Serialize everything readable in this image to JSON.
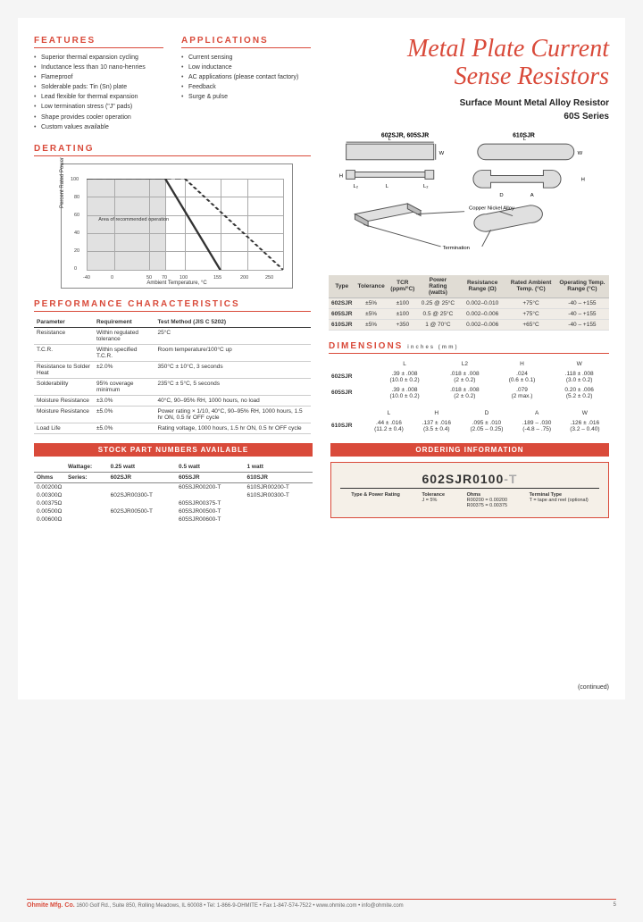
{
  "title_line1": "Metal Plate Current",
  "title_line2": "Sense Resistors",
  "subtitle1": "Surface Mount Metal Alloy Resistor",
  "subtitle2": "60S Series",
  "features": {
    "heading": "FEATURES",
    "items": [
      "Superior thermal expansion cycling",
      "Inductance less than 10 nano-henries",
      "Flameproof",
      "Solderable pads: Tin (Sn) plate",
      "Lead flexible for thermal expansion",
      "Low termination stress (\"J\" pads)",
      "Shape provides cooler operation",
      "Custom values available"
    ]
  },
  "applications": {
    "heading": "APPLICATIONS",
    "items": [
      "Current sensing",
      "Low inductance",
      "AC applications (please contact factory)",
      "Feedback",
      "Surge & pulse"
    ]
  },
  "derating": {
    "heading": "DERATING",
    "ylabel": "Percent Rated Power",
    "xlabel": "Ambient Temperature, °C",
    "yticks": [
      "0",
      "20",
      "40",
      "60",
      "80",
      "100"
    ],
    "xticks": [
      "-40",
      "0",
      "50",
      "70",
      "100",
      "155",
      "200",
      "250",
      "275"
    ],
    "area_label": "Area of recommended operation"
  },
  "perf": {
    "heading": "PERFORMANCE CHARACTERISTICS",
    "cols": [
      "Parameter",
      "Requirement",
      "Test Method (JIS C 5202)"
    ],
    "rows": [
      [
        "Resistance",
        "Within regulated tolerance",
        "25°C"
      ],
      [
        "T.C.R.",
        "Within specified T.C.R.",
        "Room temperature/100°C up"
      ],
      [
        "Resistance to Solder Heat",
        "±2.0%",
        "350°C ± 10°C, 3 seconds"
      ],
      [
        "Solderability",
        "95% coverage minimum",
        "235°C ± 5°C, 5 seconds"
      ],
      [
        "Moisture Resistance",
        "±3.0%",
        "40°C, 90–95% RH, 1000 hours, no load"
      ],
      [
        "Moisture Resistance",
        "±5.0%",
        "Power rating × 1/10, 40°C, 90–95% RH, 1000 hours, 1.5 hr ON, 0.5 hr OFF cycle"
      ],
      [
        "Load Life",
        "±5.0%",
        "Rating voltage, 1000 hours, 1.5 hr ON, 0.5 hr OFF cycle"
      ]
    ]
  },
  "diagram": {
    "label_602": "602SJR, 605SJR",
    "label_610": "610SJR",
    "copper": "Copper Nickel Alloy",
    "term": "Termination"
  },
  "specs": {
    "cols": [
      "Type",
      "Tolerance",
      "TCR (ppm/°C)",
      "Power Rating (watts)",
      "Resistance Range (Ω)",
      "Rated Ambient Temp. (°C)",
      "Operating Temp. Range (°C)"
    ],
    "rows": [
      [
        "602SJR",
        "±5%",
        "±100",
        "0.25 @ 25°C",
        "0.002–0.010",
        "+75°C",
        "-40 – +155"
      ],
      [
        "605SJR",
        "±5%",
        "±100",
        "0.5 @ 25°C",
        "0.002–0.006",
        "+75°C",
        "-40 – +155"
      ],
      [
        "610SJR",
        "±5%",
        "+350",
        "1 @ 70°C",
        "0.002–0.006",
        "+65°C",
        "-40 – +155"
      ]
    ]
  },
  "dimensions": {
    "heading": "DIMENSIONS",
    "unit": "inches (mm)",
    "block1": {
      "cols": [
        "",
        "L",
        "L2",
        "H",
        "W"
      ],
      "rows": [
        [
          "602SJR",
          ".39 ± .008\n(10.0 ± 0.2)",
          ".018 ± .008\n(2 ± 0.2)",
          ".024\n(0.6 ± 0.1)",
          ".118 ± .008\n(3.0 ± 0.2)"
        ],
        [
          "605SJR",
          ".39 ± .008\n(10.0 ± 0.2)",
          ".018 ± .008\n(2 ± 0.2)",
          ".079\n(2 max.)",
          "0.20 ± .006\n(5.2 ± 0.2)"
        ]
      ]
    },
    "block2": {
      "cols": [
        "",
        "L",
        "H",
        "D",
        "A",
        "W"
      ],
      "rows": [
        [
          "610SJR",
          ".44 ± .016\n(11.2 ± 0.4)",
          ".137 ± .016\n(3.5 ± 0.4)",
          ".095 ± .010\n(2.05 – 0.25)",
          ".189 – .030\n(-4.8 – .75)",
          ".126 ± .016\n(3.2 – 0.40)"
        ]
      ]
    }
  },
  "stock": {
    "heading": "STOCK PART NUMBERS AVAILABLE",
    "wattage_label": "Wattage:",
    "series_label": "Series:",
    "wattages": [
      "0.25 watt",
      "0.5 watt",
      "1 watt"
    ],
    "series": [
      "602SJR",
      "605SJR",
      "610SJR"
    ],
    "ohms_label": "Ohms",
    "rows": [
      [
        "0.00200Ω",
        "",
        "605SJR00200-T",
        "610SJR00200-T"
      ],
      [
        "0.00300Ω",
        "602SJR00300-T",
        "",
        "610SJR00300-T"
      ],
      [
        "0.00375Ω",
        "",
        "605SJR00375-T",
        ""
      ],
      [
        "0.00500Ω",
        "602SJR00500-T",
        "605SJR00500-T",
        ""
      ],
      [
        "0.00600Ω",
        "",
        "605SJR00600-T",
        ""
      ]
    ]
  },
  "ordering": {
    "heading": "ORDERING INFORMATION",
    "code_main": "602SJR0100",
    "code_suffix": "-T",
    "legend": [
      {
        "t": "Type & Power Rating",
        "d": ""
      },
      {
        "t": "Tolerance",
        "d": "J = 5%"
      },
      {
        "t": "Ohms",
        "d": "R00200 = 0.00200\nR00375 = 0.00375"
      },
      {
        "t": "Terminal Type",
        "d": "T = tape and reel (optional)"
      }
    ]
  },
  "continued": "(continued)",
  "footer": {
    "company": "Ohmite Mfg. Co.",
    "text": "1600 Golf Rd., Suite 850, Rolling Meadows, IL 60008 • Tel: 1-866-9-OHMITE • Fax 1-847-574-7522 • www.ohmite.com • info@ohmite.com",
    "page": "5"
  }
}
